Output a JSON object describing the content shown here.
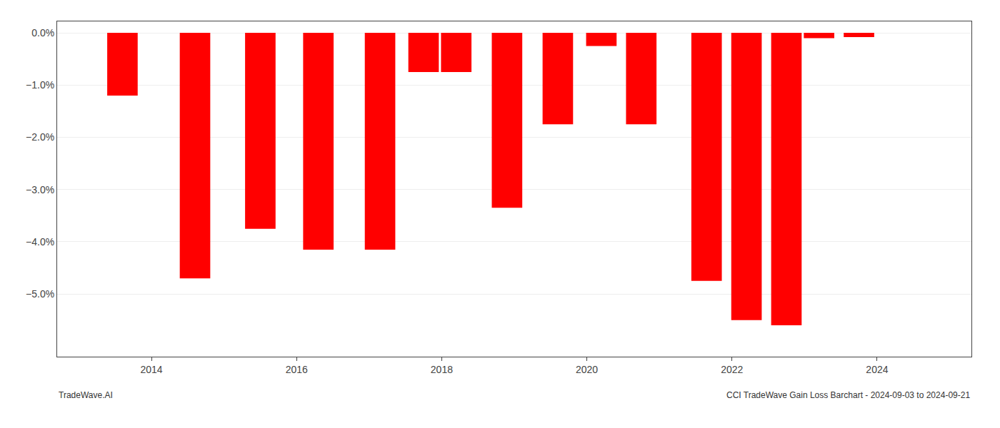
{
  "chart_data": {
    "type": "bar",
    "x": [
      2013.6,
      2014.6,
      2015.5,
      2016.3,
      2017.15,
      2017.75,
      2018.2,
      2018.9,
      2019.6,
      2020.2,
      2020.75,
      2021.65,
      2022.2,
      2022.75,
      2023.2,
      2023.75
    ],
    "values": [
      -1.2,
      -4.7,
      -3.75,
      -4.15,
      -4.15,
      -0.75,
      -0.75,
      -3.35,
      -1.75,
      -0.25,
      -1.75,
      -4.75,
      -5.5,
      -5.6,
      -0.1,
      -0.08
    ],
    "color": "#ff0000",
    "xlim": [
      2012.7,
      2025.3
    ],
    "xticks": [
      2014,
      2016,
      2018,
      2020,
      2022,
      2024
    ],
    "ylim": [
      -6.2,
      0.22
    ],
    "yticks": [
      {
        "value": 0.0,
        "label": "0.0%"
      },
      {
        "value": -1.0,
        "label": "−1.0%"
      },
      {
        "value": -2.0,
        "label": "−2.0%"
      },
      {
        "value": -3.0,
        "label": "−3.0%"
      },
      {
        "value": -4.0,
        "label": "−4.0%"
      },
      {
        "value": -5.0,
        "label": "−5.0%"
      }
    ],
    "grid": true,
    "annotations": [
      "TradeWave.AI",
      "CCI TradeWave Gain Loss Barchart - 2024-09-03 to 2024-09-21"
    ]
  }
}
